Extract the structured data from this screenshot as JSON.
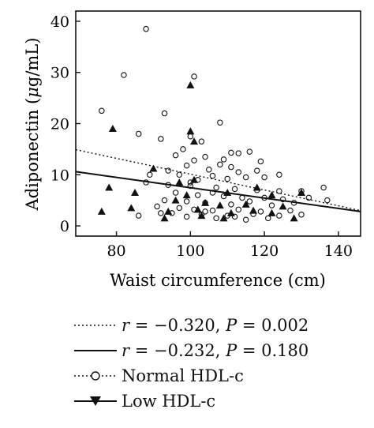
{
  "chart_data": {
    "type": "scatter",
    "title": "",
    "xlabel": "Waist circumference (cm)",
    "ylabel": "Adiponectin (μg/mL)",
    "ylabel_prefix": "Adiponectin (",
    "ylabel_unit_italic": "μ",
    "ylabel_suffix": "g/mL)",
    "xlim": [
      69,
      146
    ],
    "ylim": [
      -2,
      42
    ],
    "x_ticks": [
      "80",
      "100",
      "120",
      "140"
    ],
    "x_tick_values": [
      80,
      100,
      120,
      140
    ],
    "y_ticks": [
      "0",
      "10",
      "20",
      "30",
      "40"
    ],
    "y_tick_values": [
      0,
      10,
      20,
      30,
      40
    ],
    "grid": false,
    "legend_position": "bottom",
    "series": [
      {
        "name": "Normal HDL-c",
        "marker": "open-circle",
        "points": [
          [
            88,
            38.5
          ],
          [
            82,
            29.5
          ],
          [
            101,
            29.2
          ],
          [
            76,
            22.5
          ],
          [
            93,
            22.0
          ],
          [
            108,
            20.2
          ],
          [
            86,
            18.0
          ],
          [
            92,
            17.0
          ],
          [
            100,
            17.5
          ],
          [
            103,
            16.5
          ],
          [
            98,
            15.0
          ],
          [
            111,
            14.3
          ],
          [
            113,
            14.2
          ],
          [
            116,
            14.5
          ],
          [
            96,
            13.8
          ],
          [
            104,
            13.5
          ],
          [
            109,
            13.0
          ],
          [
            101,
            12.8
          ],
          [
            119,
            12.6
          ],
          [
            108,
            12.0
          ],
          [
            111,
            11.5
          ],
          [
            99,
            11.8
          ],
          [
            94,
            10.8
          ],
          [
            105,
            11.0
          ],
          [
            113,
            10.5
          ],
          [
            118,
            10.8
          ],
          [
            124,
            10.0
          ],
          [
            89,
            10.0
          ],
          [
            97,
            10.0
          ],
          [
            106,
            9.8
          ],
          [
            115,
            9.5
          ],
          [
            110,
            9.2
          ],
          [
            102,
            9.0
          ],
          [
            120,
            9.5
          ],
          [
            88,
            8.5
          ],
          [
            94,
            8.0
          ],
          [
            100,
            7.8
          ],
          [
            107,
            7.5
          ],
          [
            112,
            7.2
          ],
          [
            118,
            7.0
          ],
          [
            124,
            6.8
          ],
          [
            130,
            6.8
          ],
          [
            136,
            7.5
          ],
          [
            96,
            6.5
          ],
          [
            102,
            6.0
          ],
          [
            109,
            5.8
          ],
          [
            114,
            5.5
          ],
          [
            120,
            5.5
          ],
          [
            125,
            5.2
          ],
          [
            132,
            5.5
          ],
          [
            93,
            5.0
          ],
          [
            99,
            4.8
          ],
          [
            104,
            4.5
          ],
          [
            111,
            4.2
          ],
          [
            116,
            4.8
          ],
          [
            122,
            4.0
          ],
          [
            128,
            4.5
          ],
          [
            137,
            5.0
          ],
          [
            91,
            3.8
          ],
          [
            97,
            3.5
          ],
          [
            101,
            3.2
          ],
          [
            106,
            3.0
          ],
          [
            113,
            3.2
          ],
          [
            119,
            2.8
          ],
          [
            127,
            3.0
          ],
          [
            95,
            2.5
          ],
          [
            103,
            2.2
          ],
          [
            110,
            2.0
          ],
          [
            117,
            2.3
          ],
          [
            124,
            2.0
          ],
          [
            130,
            2.2
          ],
          [
            99,
            1.8
          ],
          [
            107,
            1.5
          ],
          [
            112,
            1.8
          ],
          [
            121,
            1.5
          ],
          [
            86,
            2.0
          ],
          [
            92,
            2.5
          ],
          [
            104,
            2.8
          ],
          [
            115,
            1.2
          ],
          [
            100,
            8.5
          ],
          [
            106,
            6.5
          ]
        ]
      },
      {
        "name": "Low HDL-c",
        "marker": "filled-triangle",
        "points": [
          [
            100,
            27.5
          ],
          [
            79,
            19.0
          ],
          [
            100,
            18.5
          ],
          [
            101,
            16.5
          ],
          [
            90,
            11.2
          ],
          [
            97,
            8.5
          ],
          [
            101,
            9.0
          ],
          [
            78,
            7.5
          ],
          [
            85,
            6.5
          ],
          [
            99,
            6.0
          ],
          [
            110,
            6.5
          ],
          [
            118,
            7.5
          ],
          [
            122,
            6.0
          ],
          [
            130,
            6.5
          ],
          [
            96,
            5.0
          ],
          [
            104,
            4.5
          ],
          [
            108,
            4.0
          ],
          [
            115,
            4.2
          ],
          [
            125,
            3.8
          ],
          [
            84,
            3.5
          ],
          [
            94,
            2.8
          ],
          [
            102,
            3.2
          ],
          [
            111,
            2.5
          ],
          [
            117,
            3.0
          ],
          [
            122,
            2.5
          ],
          [
            76,
            2.8
          ],
          [
            93,
            1.5
          ],
          [
            109,
            1.5
          ],
          [
            128,
            1.5
          ],
          [
            103,
            2.0
          ]
        ]
      }
    ],
    "fit_lines": [
      {
        "name": "Normal HDL-c fit",
        "style": "dotted",
        "from": [
          69,
          14.9
        ],
        "to": [
          146,
          3.0
        ],
        "label_r": "r",
        "label_r_value": " = −0.320, ",
        "label_p": "P",
        "label_p_value": " = 0.002"
      },
      {
        "name": "Low HDL-c fit",
        "style": "solid",
        "from": [
          69,
          10.6
        ],
        "to": [
          146,
          2.8
        ],
        "label_r": "r",
        "label_r_value": " = −0.232, ",
        "label_p": "P",
        "label_p_value": " = 0.180"
      }
    ]
  }
}
